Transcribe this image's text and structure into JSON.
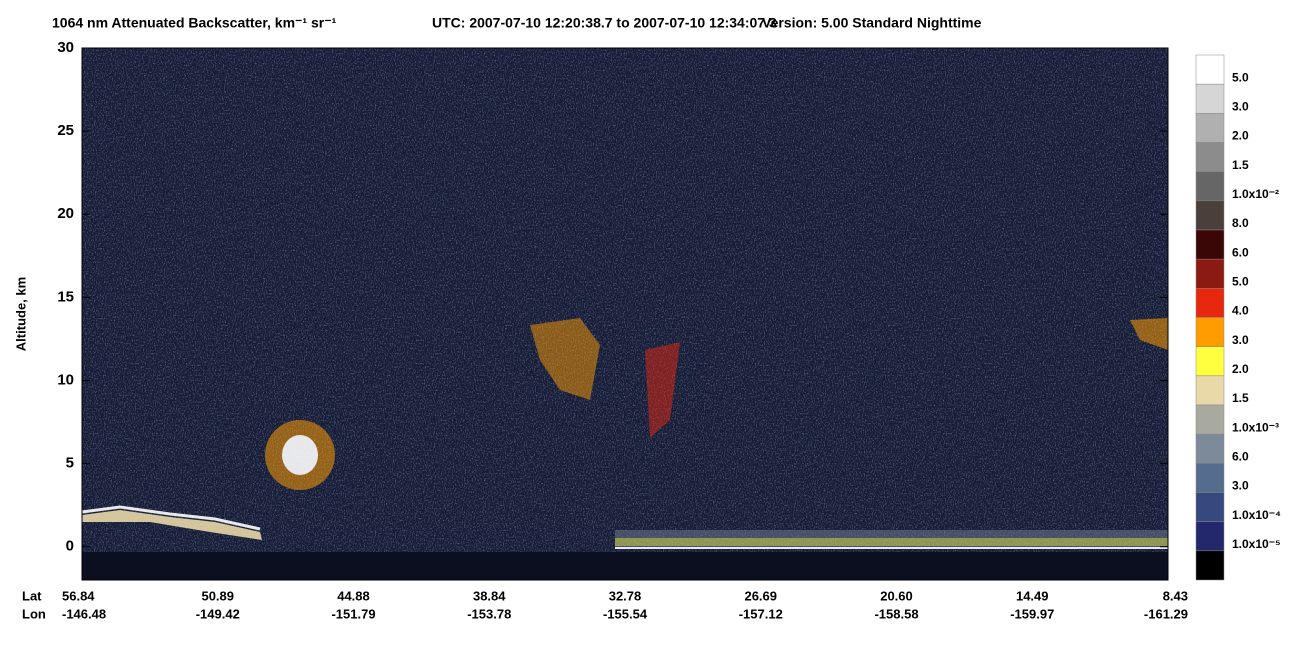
{
  "chart_data": {
    "type": "curtain",
    "title": "1064 nm Attenuated Backscatter, km⁻¹ sr⁻¹",
    "time_range": "UTC:  2007-07-10 12:20:38.7  to  2007-07-10 12:34:07.3",
    "version": "Version: 5.00  Standard  Nighttime",
    "y_label": "Altitude, km",
    "ylim": [
      -2,
      30
    ],
    "yticks": [
      0,
      5,
      10,
      15,
      20,
      25,
      30
    ],
    "x_row_labels": [
      "Lat",
      "Lon"
    ],
    "lat": [
      "56.84",
      "50.89",
      "44.88",
      "38.84",
      "32.78",
      "26.69",
      "20.60",
      "14.49",
      "8.43"
    ],
    "lon": [
      "-146.48",
      "-149.42",
      "-151.79",
      "-153.78",
      "-155.54",
      "-157.12",
      "-158.58",
      "-159.97",
      "-161.29"
    ],
    "colorbar": {
      "colors": [
        "#ffffff",
        "#d6d6d6",
        "#b0b0b0",
        "#8c8c8c",
        "#666666",
        "#4a3f3a",
        "#3a0606",
        "#8b1a12",
        "#e8280e",
        "#ff9c00",
        "#ffff40",
        "#e9d9a9",
        "#a8aaa0",
        "#7c8a99",
        "#566c8e",
        "#36497e",
        "#23276c",
        "#000000"
      ],
      "labels": [
        "5.0",
        "3.0",
        "2.0",
        "1.5",
        "1.0x10⁻²",
        "8.0",
        "6.0",
        "5.0",
        "4.0",
        "3.0",
        "2.0",
        "1.5",
        "1.0x10⁻³",
        "6.0",
        "3.0",
        "1.0x10⁻⁴",
        "1.0x10⁻⁵"
      ]
    }
  }
}
